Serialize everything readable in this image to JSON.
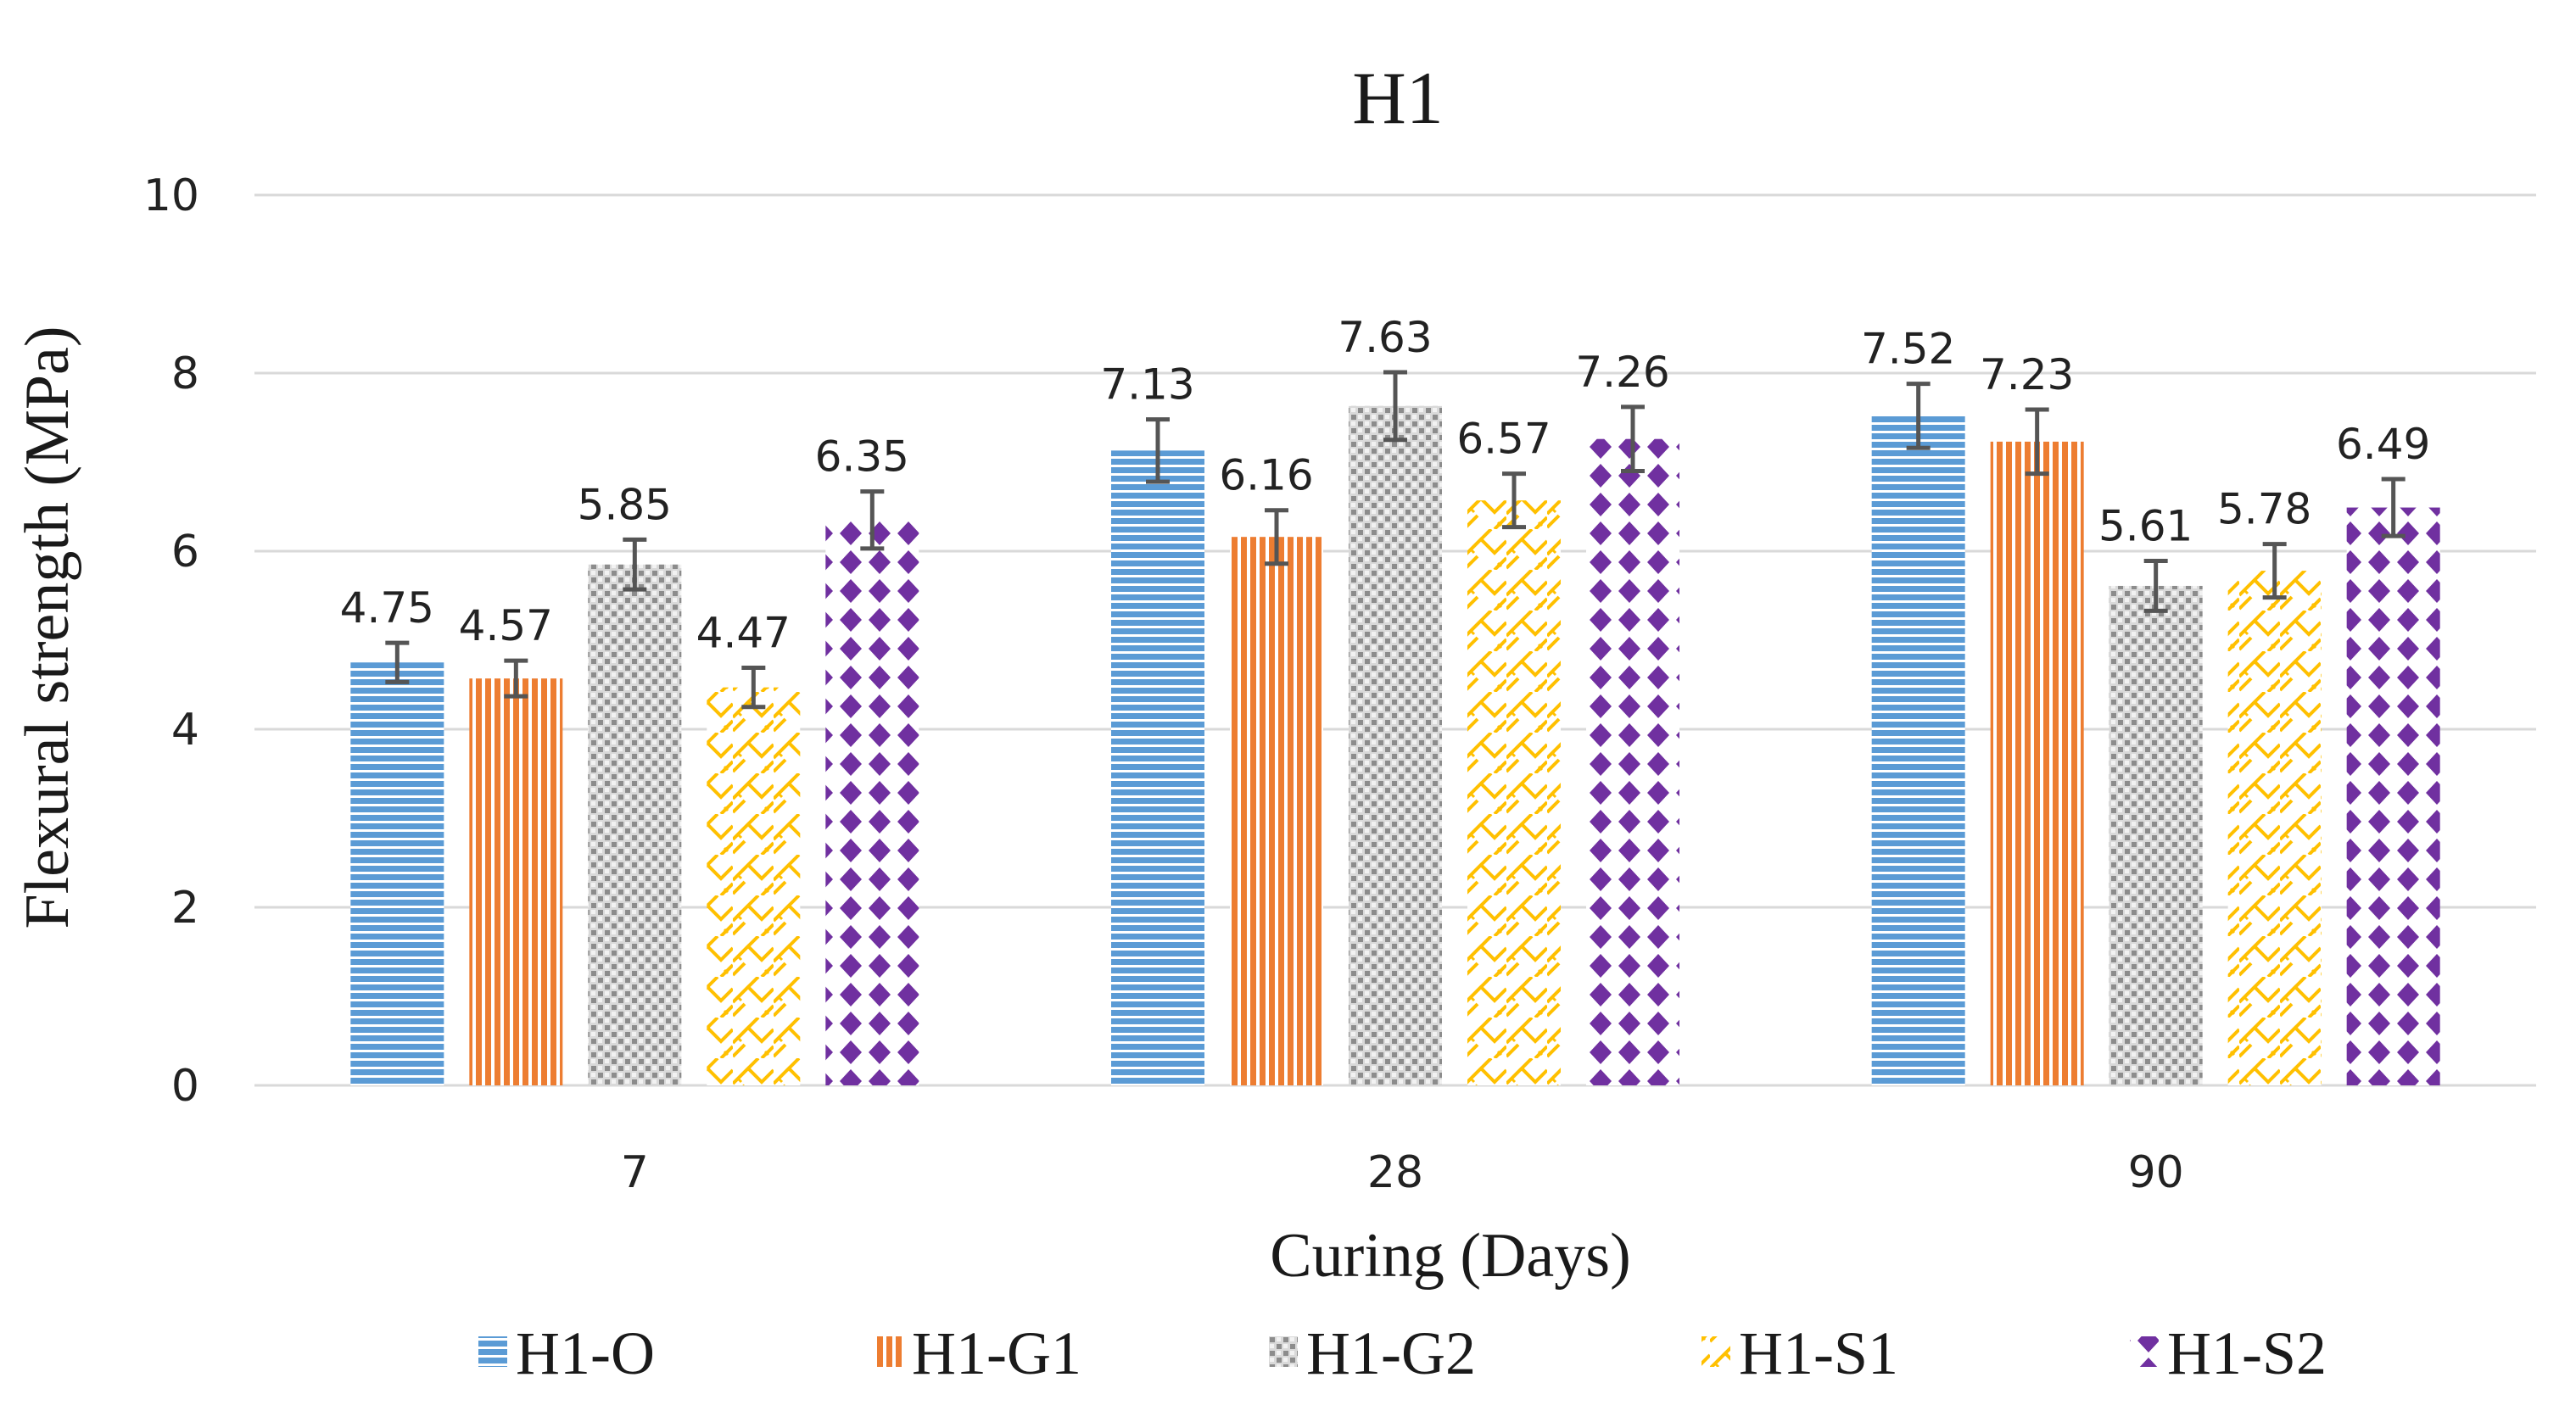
{
  "chart_data": {
    "type": "bar",
    "title": "H1",
    "xlabel": "Curing (Days)",
    "ylabel": "Flexural strength (MPa)",
    "ylim": [
      0,
      10
    ],
    "yticks": [
      0,
      2,
      4,
      6,
      8,
      10
    ],
    "grid": true,
    "legend_position": "bottom",
    "categories": [
      "7",
      "28",
      "90"
    ],
    "series": [
      {
        "name": "H1-O",
        "values": [
          4.75,
          7.13,
          7.52
        ],
        "errors": [
          0.22,
          0.35,
          0.36
        ],
        "color": "#5B9BD5",
        "pattern": "horizontal-lines"
      },
      {
        "name": "H1-G1",
        "values": [
          4.57,
          6.16,
          7.23
        ],
        "errors": [
          0.2,
          0.3,
          0.36
        ],
        "color": "#ED7D31",
        "pattern": "vertical-lines"
      },
      {
        "name": "H1-G2",
        "values": [
          5.85,
          7.63,
          5.61
        ],
        "errors": [
          0.28,
          0.38,
          0.28
        ],
        "color": "#A5A5A5",
        "pattern": "dots"
      },
      {
        "name": "H1-S1",
        "values": [
          4.47,
          6.57,
          5.78
        ],
        "errors": [
          0.22,
          0.3,
          0.3
        ],
        "color": "#FFC000",
        "pattern": "zigzag"
      },
      {
        "name": "H1-S2",
        "values": [
          6.35,
          7.26,
          6.49
        ],
        "errors": [
          0.32,
          0.36,
          0.32
        ],
        "color": "#7030A0",
        "pattern": "diamonds"
      }
    ]
  }
}
